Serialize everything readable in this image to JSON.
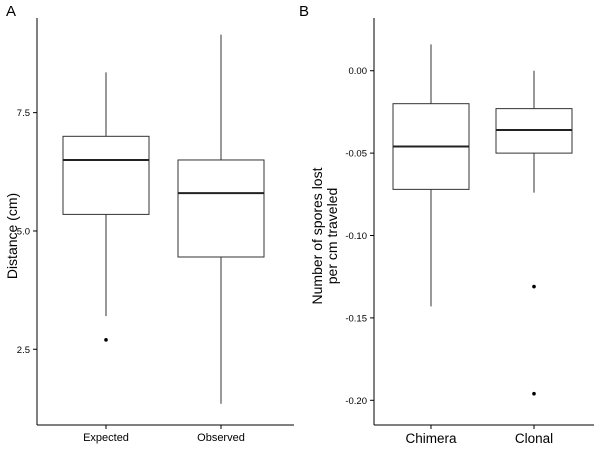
{
  "chart_data": [
    {
      "panel_label": "A",
      "type": "box",
      "xlabel": "",
      "ylabel": "Distance (cm)",
      "ylim": [
        0.9,
        9.5
      ],
      "y_ticks": [
        2.5,
        5.0,
        7.5
      ],
      "y_tick_labels": [
        "2.5",
        "5.0",
        "7.5"
      ],
      "grid": false,
      "categories": [
        "Expected",
        "Observed"
      ],
      "boxes": [
        {
          "category": "Expected",
          "min": 3.2,
          "q1": 5.35,
          "median": 6.5,
          "q3": 7.0,
          "max": 8.35,
          "outliers": [
            2.7
          ]
        },
        {
          "category": "Observed",
          "min": 1.35,
          "q1": 4.45,
          "median": 5.8,
          "q3": 6.5,
          "max": 9.15,
          "outliers": []
        }
      ]
    },
    {
      "panel_label": "B",
      "type": "box",
      "xlabel": "",
      "ylabel_lines": [
        "Number of spores lost",
        "per cm traveled"
      ],
      "ylim": [
        -0.215,
        0.032
      ],
      "y_ticks": [
        0.0,
        -0.05,
        -0.1,
        -0.15,
        -0.2
      ],
      "y_tick_labels": [
        "0.00",
        "-0.05",
        "-0.10",
        "-0.15",
        "-0.20"
      ],
      "grid": false,
      "categories": [
        "Chimera",
        "Clonal"
      ],
      "boxes": [
        {
          "category": "Chimera",
          "min": -0.143,
          "q1": -0.072,
          "median": -0.046,
          "q3": -0.02,
          "max": 0.016,
          "outliers": []
        },
        {
          "category": "Clonal",
          "min": -0.074,
          "q1": -0.05,
          "median": -0.036,
          "q3": -0.023,
          "max": 0.0,
          "outliers": [
            -0.131,
            -0.196
          ]
        }
      ]
    }
  ]
}
